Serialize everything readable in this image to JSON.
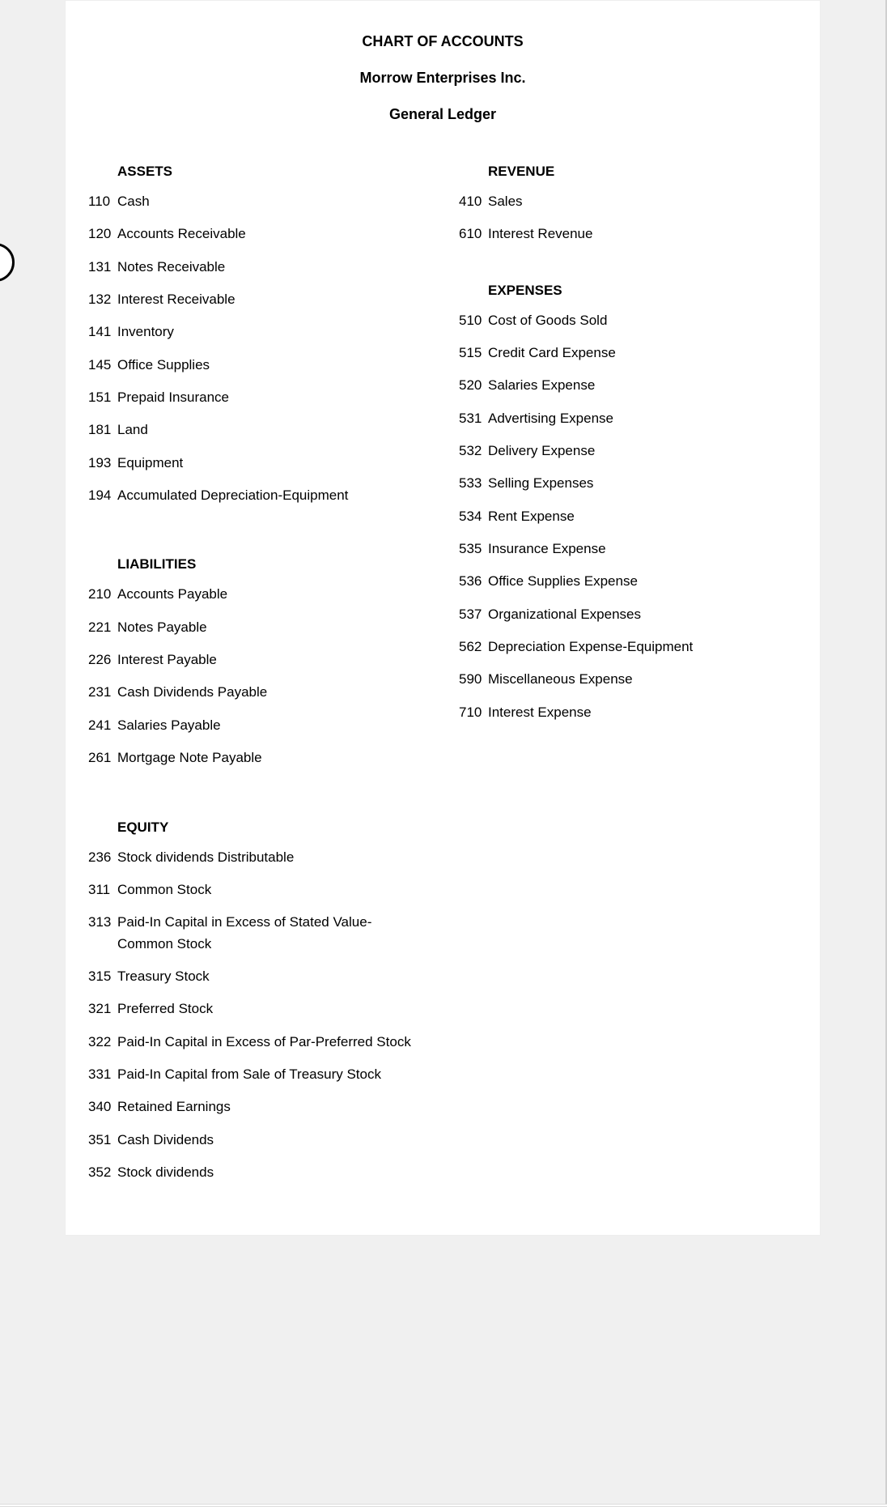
{
  "page": {
    "background_color": "#f0f0f0",
    "card_background": "#ffffff",
    "text_color": "#000000",
    "font_family": "Arial, Helvetica, sans-serif"
  },
  "header": {
    "title": "CHART OF ACCOUNTS",
    "company": "Morrow Enterprises Inc.",
    "subtitle": "General Ledger"
  },
  "sections": {
    "assets": {
      "heading": "ASSETS",
      "items": [
        {
          "num": "110",
          "name": "Cash"
        },
        {
          "num": "120",
          "name": "Accounts Receivable"
        },
        {
          "num": "131",
          "name": "Notes Receivable"
        },
        {
          "num": "132",
          "name": "Interest Receivable"
        },
        {
          "num": "141",
          "name": "Inventory"
        },
        {
          "num": "145",
          "name": "Office Supplies"
        },
        {
          "num": "151",
          "name": "Prepaid Insurance"
        },
        {
          "num": "181",
          "name": "Land"
        },
        {
          "num": "193",
          "name": "Equipment"
        },
        {
          "num": "194",
          "name": "Accumulated Depreciation-Equipment"
        }
      ]
    },
    "liabilities": {
      "heading": "LIABILITIES",
      "items": [
        {
          "num": "210",
          "name": "Accounts Payable"
        },
        {
          "num": "221",
          "name": "Notes Payable"
        },
        {
          "num": "226",
          "name": "Interest Payable"
        },
        {
          "num": "231",
          "name": "Cash Dividends Payable"
        },
        {
          "num": "241",
          "name": "Salaries Payable"
        },
        {
          "num": "261",
          "name": "Mortgage Note Payable"
        }
      ]
    },
    "equity": {
      "heading": "EQUITY",
      "items": [
        {
          "num": "236",
          "name": "Stock dividends Distributable"
        },
        {
          "num": "311",
          "name": "Common Stock"
        },
        {
          "num": "313",
          "name": "Paid-In Capital in Excess of Stated Value-Common Stock"
        },
        {
          "num": "315",
          "name": "Treasury Stock"
        },
        {
          "num": "321",
          "name": "Preferred Stock"
        },
        {
          "num": "322",
          "name": "Paid-In Capital in Excess of Par-Preferred Stock"
        },
        {
          "num": "331",
          "name": "Paid-In Capital from Sale of Treasury Stock"
        },
        {
          "num": "340",
          "name": "Retained Earnings"
        },
        {
          "num": "351",
          "name": "Cash Dividends"
        },
        {
          "num": "352",
          "name": "Stock dividends"
        }
      ]
    },
    "revenue": {
      "heading": "REVENUE",
      "items": [
        {
          "num": "410",
          "name": "Sales"
        },
        {
          "num": "610",
          "name": "Interest Revenue"
        }
      ]
    },
    "expenses": {
      "heading": "EXPENSES",
      "items": [
        {
          "num": "510",
          "name": "Cost of Goods Sold"
        },
        {
          "num": "515",
          "name": "Credit Card Expense"
        },
        {
          "num": "520",
          "name": "Salaries Expense"
        },
        {
          "num": "531",
          "name": "Advertising Expense"
        },
        {
          "num": "532",
          "name": "Delivery Expense"
        },
        {
          "num": "533",
          "name": "Selling Expenses"
        },
        {
          "num": "534",
          "name": "Rent Expense"
        },
        {
          "num": "535",
          "name": "Insurance Expense"
        },
        {
          "num": "536",
          "name": "Office Supplies Expense"
        },
        {
          "num": "537",
          "name": "Organizational Expenses"
        },
        {
          "num": "562",
          "name": "Depreciation Expense-Equipment"
        },
        {
          "num": "590",
          "name": "Miscellaneous Expense"
        },
        {
          "num": "710",
          "name": "Interest Expense"
        }
      ]
    }
  }
}
